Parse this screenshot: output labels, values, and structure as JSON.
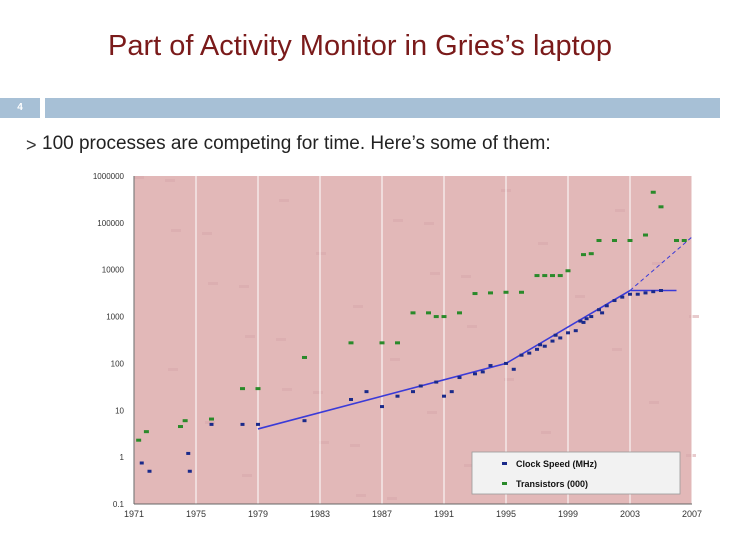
{
  "slide": {
    "title": "Part of Activity Monitor in Gries’s laptop",
    "number": "4",
    "bullet_mark": ">",
    "bullet": "100 processes are competing for time. Here’s some of them:"
  },
  "colors": {
    "plot_bg": "#e2b8b8",
    "trend_line": "#3a3ad8",
    "clock_points": "#1a2a8a",
    "transistor_points": "#2a8a2a",
    "title": "#7a1a1a",
    "band": "#a7c0d6"
  },
  "chart_data": {
    "type": "scatter",
    "title": "",
    "xlabel": "",
    "ylabel": "",
    "y_scale": "log",
    "xlim": [
      1971,
      2007
    ],
    "ylim": [
      0.1,
      1000000
    ],
    "x_ticks": [
      "1971",
      "1975",
      "1979",
      "1983",
      "1987",
      "1991",
      "1995",
      "1999",
      "2003",
      "2007"
    ],
    "y_ticks": [
      "1000000",
      "100000",
      "10000",
      "1000",
      "100",
      "10",
      "1",
      "0.1"
    ],
    "legend_position": "bottom-right",
    "series": [
      {
        "name": "Clock Speed (MHz)",
        "color": "#1a2a8a",
        "points": [
          [
            1971.5,
            0.75
          ],
          [
            1972,
            0.5
          ],
          [
            1974.5,
            1.2
          ],
          [
            1974.6,
            0.5
          ],
          [
            1976,
            5
          ],
          [
            1978,
            5
          ],
          [
            1979,
            5
          ],
          [
            1982,
            6
          ],
          [
            1985,
            17
          ],
          [
            1986,
            25
          ],
          [
            1987,
            12
          ],
          [
            1988,
            20
          ],
          [
            1989,
            25
          ],
          [
            1989.5,
            33
          ],
          [
            1990.5,
            40
          ],
          [
            1991,
            20
          ],
          [
            1991.5,
            25
          ],
          [
            1992,
            50
          ],
          [
            1993,
            60
          ],
          [
            1993.5,
            66
          ],
          [
            1994,
            90
          ],
          [
            1995,
            100
          ],
          [
            1995.5,
            75
          ],
          [
            1996,
            150
          ],
          [
            1996.5,
            166
          ],
          [
            1997,
            200
          ],
          [
            1997.5,
            233
          ],
          [
            1998,
            300
          ],
          [
            1998.5,
            350
          ],
          [
            1999,
            450
          ],
          [
            1999.5,
            500
          ],
          [
            2000,
            750
          ],
          [
            2000.5,
            1000
          ],
          [
            2001,
            1400
          ],
          [
            2001.5,
            1700
          ],
          [
            2002,
            2200
          ],
          [
            2002.5,
            2600
          ],
          [
            2003,
            3000
          ],
          [
            2004,
            3200
          ],
          [
            2004.5,
            3400
          ],
          [
            2005,
            3600
          ],
          [
            2003.5,
            3000
          ],
          [
            1999.8,
            800
          ],
          [
            1998.2,
            400
          ],
          [
            1997.2,
            250
          ],
          [
            2000.2,
            900
          ],
          [
            2001.2,
            1200
          ]
        ]
      },
      {
        "name": "Transistors (000)",
        "color": "#2a8a2a",
        "points": [
          [
            1971.3,
            2.3
          ],
          [
            1971.8,
            3.5
          ],
          [
            1974,
            4.5
          ],
          [
            1974.3,
            6
          ],
          [
            1976,
            6.5
          ],
          [
            1978,
            29
          ],
          [
            1979,
            29
          ],
          [
            1982,
            134
          ],
          [
            1985,
            275
          ],
          [
            1987,
            275
          ],
          [
            1988,
            275
          ],
          [
            1989,
            1200
          ],
          [
            1990,
            1200
          ],
          [
            1990.5,
            1000
          ],
          [
            1991,
            1000
          ],
          [
            1992,
            1200
          ],
          [
            1993,
            3100
          ],
          [
            1994,
            3200
          ],
          [
            1995,
            3300
          ],
          [
            1996,
            3300
          ],
          [
            1997,
            7500
          ],
          [
            1998,
            7500
          ],
          [
            1999,
            9500
          ],
          [
            2000,
            21000
          ],
          [
            2000.5,
            22000
          ],
          [
            2001,
            42000
          ],
          [
            2002,
            42000
          ],
          [
            2003,
            42000
          ],
          [
            2004,
            55000
          ],
          [
            2005,
            220000
          ],
          [
            2006,
            42000
          ],
          [
            2006.5,
            42000
          ],
          [
            1997.5,
            7500
          ],
          [
            1998.5,
            7500
          ],
          [
            2004.5,
            450000
          ]
        ]
      }
    ],
    "trend_lines": [
      {
        "points": [
          [
            1979,
            4
          ],
          [
            1995,
            100
          ],
          [
            2003,
            3600
          ],
          [
            2006,
            3600
          ]
        ],
        "style": "solid"
      },
      {
        "points": [
          [
            2003,
            3600
          ],
          [
            2007,
            50000
          ]
        ],
        "style": "dashed"
      }
    ]
  }
}
